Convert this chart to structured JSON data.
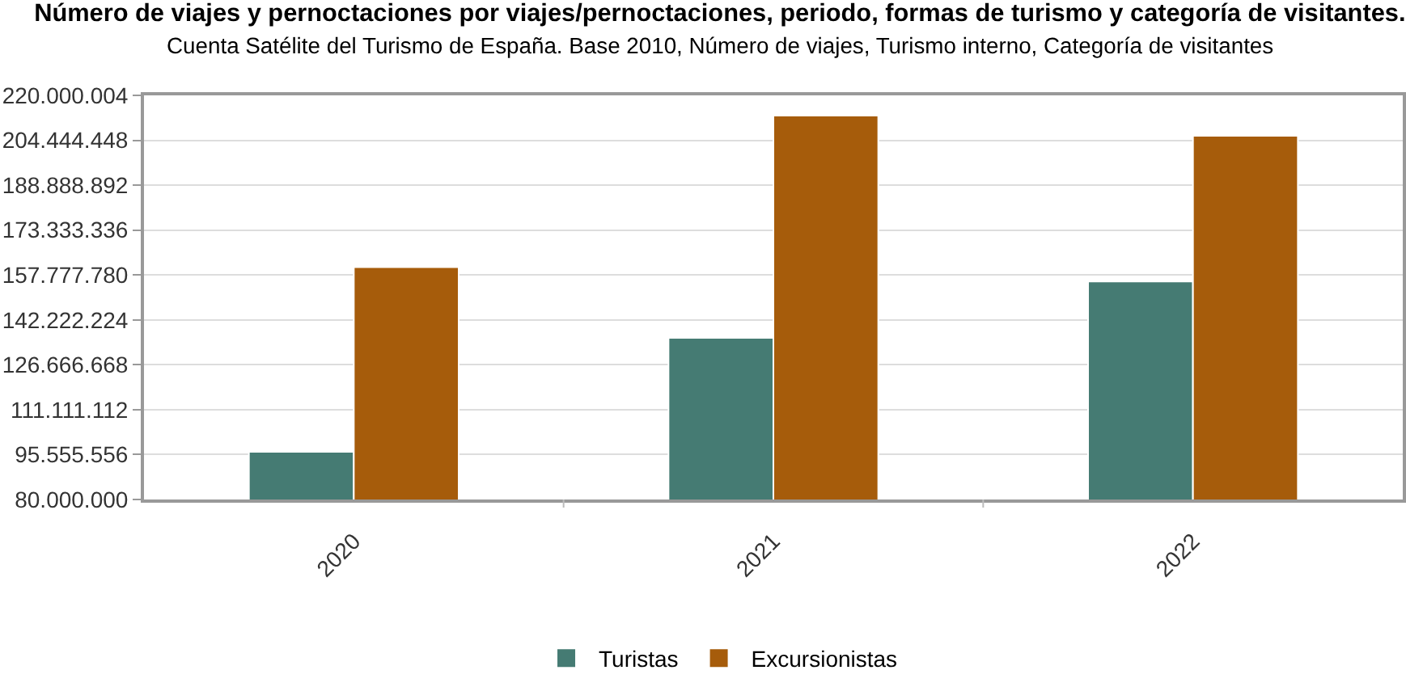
{
  "chart_data": {
    "type": "bar",
    "title": "Número de viajes y pernoctaciones por viajes/pernoctaciones, periodo, formas de turismo y categoría de visitantes.",
    "subtitle": "Cuenta Satélite del Turismo de España. Base 2010, Número de viajes, Turismo interno, Categoría de visitantes",
    "categories": [
      "2020",
      "2021",
      "2022"
    ],
    "series": [
      {
        "name": "Turistas",
        "color": "#457b73",
        "values": [
          96500000,
          136000000,
          155500000
        ]
      },
      {
        "name": "Excursionistas",
        "color": "#a65c0b",
        "values": [
          160500000,
          213000000,
          206000000
        ]
      }
    ],
    "ylim": [
      80000000,
      220000004
    ],
    "yticks": [
      {
        "value": 80000000,
        "label": "80.000.000"
      },
      {
        "value": 95555556,
        "label": "95.555.556"
      },
      {
        "value": 111111112,
        "label": "111.111.112"
      },
      {
        "value": 126666668,
        "label": "126.666.668"
      },
      {
        "value": 142222224,
        "label": "142.222.224"
      },
      {
        "value": 157777780,
        "label": "157.777.780"
      },
      {
        "value": 173333336,
        "label": "173.333.336"
      },
      {
        "value": 188888892,
        "label": "188.888.892"
      },
      {
        "value": 204444448,
        "label": "204.444.448"
      },
      {
        "value": 220000004,
        "label": "220.000.004"
      }
    ],
    "grid": "y",
    "legend": "bottom"
  }
}
